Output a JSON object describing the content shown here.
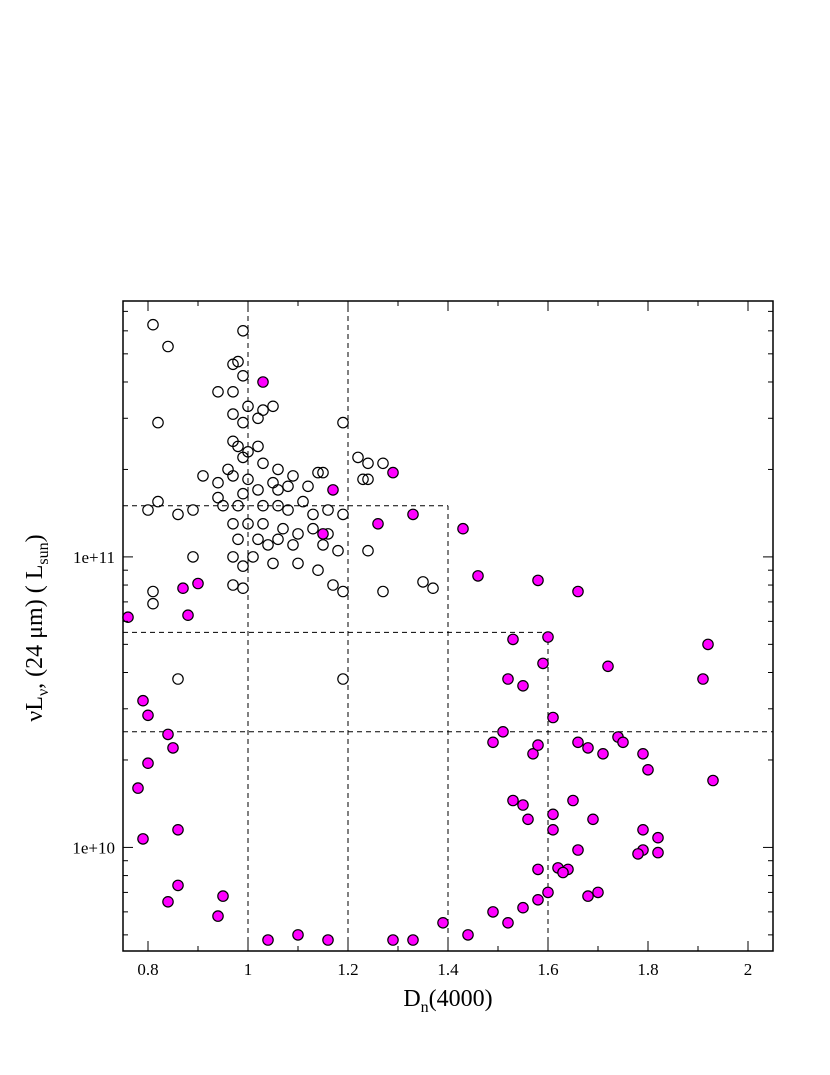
{
  "chart_data": {
    "type": "scatter",
    "title": "",
    "xlabel": {
      "main": "D",
      "sub": "n",
      "rest": "(4000)"
    },
    "ylabel": {
      "nu": "ν",
      "L": "L",
      "sub_nu": "ν",
      "mid": ", (24 μm) ( L",
      "sub_sun": "sun",
      "end": ")"
    },
    "xlim": [
      0.75,
      2.05
    ],
    "ylim": [
      4400000000.0,
      760000000000.0
    ],
    "yscale": "log",
    "x_ticks": [
      0.8,
      1,
      1.2,
      1.4,
      1.6,
      1.8,
      2
    ],
    "x_tick_labels": [
      "0.8",
      "1",
      "1.2",
      "1.4",
      "1.6",
      "1.8",
      "2"
    ],
    "y_ticks": [
      10000000000,
      100000000000
    ],
    "y_tick_labels": [
      "1e+10",
      "1e+11"
    ],
    "colors": {
      "filled": "#ff00ff",
      "edge": "#000000",
      "guide": "#000000"
    },
    "guide_lines": [
      {
        "type": "vertical",
        "x": 1.0,
        "y_from": 4400000000.0,
        "y_to": 760000000000.0
      },
      {
        "type": "vertical",
        "x": 1.2,
        "y_from": 4400000000.0,
        "y_to": 760000000000.0
      },
      {
        "type": "horizontal",
        "y": 150000000000.0,
        "x_from": 0.75,
        "x_to": 1.4
      },
      {
        "type": "vertical",
        "x": 1.4,
        "y_from": 4400000000.0,
        "y_to": 150000000000.0
      },
      {
        "type": "horizontal",
        "y": 55000000000.0,
        "x_from": 0.75,
        "x_to": 1.6
      },
      {
        "type": "vertical",
        "x": 1.6,
        "y_from": 4400000000.0,
        "y_to": 55000000000.0
      },
      {
        "type": "horizontal",
        "y": 25000000000.0,
        "x_from": 0.75,
        "x_to": 2.05
      }
    ],
    "series": [
      {
        "marker": "open-circle",
        "points": [
          [
            0.81,
            630000000000.0
          ],
          [
            0.84,
            530000000000.0
          ],
          [
            0.99,
            600000000000.0
          ],
          [
            0.97,
            460000000000.0
          ],
          [
            0.98,
            470000000000.0
          ],
          [
            0.99,
            420000000000.0
          ],
          [
            0.94,
            370000000000.0
          ],
          [
            0.97,
            370000000000.0
          ],
          [
            1.0,
            330000000000.0
          ],
          [
            1.03,
            320000000000.0
          ],
          [
            1.05,
            330000000000.0
          ],
          [
            0.82,
            290000000000.0
          ],
          [
            0.97,
            310000000000.0
          ],
          [
            0.99,
            290000000000.0
          ],
          [
            1.02,
            300000000000.0
          ],
          [
            1.19,
            290000000000.0
          ],
          [
            0.97,
            250000000000.0
          ],
          [
            0.98,
            240000000000.0
          ],
          [
            1.0,
            230000000000.0
          ],
          [
            1.02,
            240000000000.0
          ],
          [
            0.99,
            220000000000.0
          ],
          [
            1.03,
            210000000000.0
          ],
          [
            0.96,
            200000000000.0
          ],
          [
            0.94,
            180000000000.0
          ],
          [
            1.22,
            220000000000.0
          ],
          [
            1.24,
            210000000000.0
          ],
          [
            1.27,
            210000000000.0
          ],
          [
            0.91,
            190000000000.0
          ],
          [
            0.97,
            190000000000.0
          ],
          [
            1.0,
            185000000000.0
          ],
          [
            1.06,
            200000000000.0
          ],
          [
            1.09,
            190000000000.0
          ],
          [
            1.14,
            195000000000.0
          ],
          [
            1.15,
            195000000000.0
          ],
          [
            0.94,
            160000000000.0
          ],
          [
            0.99,
            165000000000.0
          ],
          [
            1.02,
            170000000000.0
          ],
          [
            1.05,
            180000000000.0
          ],
          [
            1.06,
            170000000000.0
          ],
          [
            1.08,
            175000000000.0
          ],
          [
            1.12,
            175000000000.0
          ],
          [
            1.23,
            185000000000.0
          ],
          [
            1.24,
            185000000000.0
          ],
          [
            0.82,
            155000000000.0
          ],
          [
            0.8,
            145000000000.0
          ],
          [
            0.86,
            140000000000.0
          ],
          [
            0.89,
            145000000000.0
          ],
          [
            0.95,
            150000000000.0
          ],
          [
            0.98,
            150000000000.0
          ],
          [
            1.03,
            150000000000.0
          ],
          [
            1.06,
            150000000000.0
          ],
          [
            1.08,
            145000000000.0
          ],
          [
            1.11,
            155000000000.0
          ],
          [
            1.13,
            140000000000.0
          ],
          [
            1.16,
            145000000000.0
          ],
          [
            1.19,
            140000000000.0
          ],
          [
            0.97,
            130000000000.0
          ],
          [
            1.0,
            130000000000.0
          ],
          [
            1.03,
            130000000000.0
          ],
          [
            1.07,
            125000000000.0
          ],
          [
            1.1,
            120000000000.0
          ],
          [
            1.13,
            125000000000.0
          ],
          [
            1.16,
            120000000000.0
          ],
          [
            0.98,
            115000000000.0
          ],
          [
            1.02,
            115000000000.0
          ],
          [
            1.04,
            110000000000.0
          ],
          [
            1.06,
            115000000000.0
          ],
          [
            1.09,
            110000000000.0
          ],
          [
            1.15,
            110000000000.0
          ],
          [
            1.18,
            105000000000.0
          ],
          [
            0.89,
            100000000000.0
          ],
          [
            0.97,
            100000000000.0
          ],
          [
            1.01,
            100000000000.0
          ],
          [
            1.05,
            95000000000.0
          ],
          [
            1.1,
            95000000000.0
          ],
          [
            1.14,
            90000000000.0
          ],
          [
            0.99,
            93000000000.0
          ],
          [
            1.24,
            105000000000.0
          ],
          [
            0.81,
            76000000000.0
          ],
          [
            0.81,
            69000000000.0
          ],
          [
            0.97,
            80000000000.0
          ],
          [
            0.99,
            78000000000.0
          ],
          [
            1.17,
            80000000000.0
          ],
          [
            1.19,
            76000000000.0
          ],
          [
            1.27,
            76000000000.0
          ],
          [
            1.35,
            82000000000.0
          ],
          [
            1.37,
            78000000000.0
          ],
          [
            0.86,
            38000000000.0
          ],
          [
            1.19,
            38000000000.0
          ]
        ]
      },
      {
        "marker": "filled-circle",
        "points": [
          [
            0.76,
            62000000000.0
          ],
          [
            0.78,
            16000000000.0
          ],
          [
            0.79,
            32000000000.0
          ],
          [
            0.79,
            10700000000.0
          ],
          [
            0.8,
            19500000000.0
          ],
          [
            0.8,
            28500000000.0
          ],
          [
            0.84,
            6500000000.0
          ],
          [
            0.84,
            24500000000.0
          ],
          [
            0.85,
            22000000000.0
          ],
          [
            0.86,
            7400000000.0
          ],
          [
            0.86,
            11500000000.0
          ],
          [
            0.87,
            78000000000.0
          ],
          [
            0.88,
            63000000000.0
          ],
          [
            0.9,
            81000000000.0
          ],
          [
            0.94,
            5800000000.0
          ],
          [
            0.95,
            6800000000.0
          ],
          [
            1.04,
            4800000000.0
          ],
          [
            1.1,
            5000000000.0
          ],
          [
            1.16,
            4800000000.0
          ],
          [
            1.29,
            4800000000.0
          ],
          [
            1.33,
            4800000000.0
          ],
          [
            1.44,
            5000000000.0
          ],
          [
            1.39,
            5500000000.0
          ],
          [
            1.49,
            6000000000.0
          ],
          [
            1.52,
            5500000000.0
          ],
          [
            1.55,
            6200000000.0
          ],
          [
            1.03,
            400000000000.0
          ],
          [
            1.17,
            170000000000.0
          ],
          [
            1.29,
            195000000000.0
          ],
          [
            1.15,
            120000000000.0
          ],
          [
            1.26,
            130000000000.0
          ],
          [
            1.33,
            140000000000.0
          ],
          [
            1.43,
            125000000000.0
          ],
          [
            1.46,
            86000000000.0
          ],
          [
            1.58,
            83000000000.0
          ],
          [
            1.66,
            76000000000.0
          ],
          [
            1.53,
            52000000000.0
          ],
          [
            1.6,
            53000000000.0
          ],
          [
            1.59,
            43000000000.0
          ],
          [
            1.72,
            42000000000.0
          ],
          [
            1.92,
            50000000000.0
          ],
          [
            1.91,
            38000000000.0
          ],
          [
            1.52,
            38000000000.0
          ],
          [
            1.55,
            36000000000.0
          ],
          [
            1.61,
            28000000000.0
          ],
          [
            1.66,
            23000000000.0
          ],
          [
            1.68,
            22000000000.0
          ],
          [
            1.71,
            21000000000.0
          ],
          [
            1.74,
            24000000000.0
          ],
          [
            1.75,
            23000000000.0
          ],
          [
            1.79,
            21000000000.0
          ],
          [
            1.8,
            18500000000.0
          ],
          [
            1.93,
            17000000000.0
          ],
          [
            1.65,
            14500000000.0
          ],
          [
            1.61,
            13000000000.0
          ],
          [
            1.69,
            12500000000.0
          ],
          [
            1.79,
            11500000000.0
          ],
          [
            1.82,
            10800000000.0
          ],
          [
            1.79,
            9800000000.0
          ],
          [
            1.78,
            9500000000.0
          ],
          [
            1.82,
            9600000000.0
          ],
          [
            1.66,
            9800000000.0
          ],
          [
            1.62,
            8500000000.0
          ],
          [
            1.64,
            8400000000.0
          ],
          [
            1.63,
            8200000000.0
          ],
          [
            1.7,
            7000000000.0
          ],
          [
            1.68,
            6800000000.0
          ],
          [
            1.58,
            8400000000.0
          ],
          [
            1.58,
            6600000000.0
          ],
          [
            1.6,
            7000000000.0
          ],
          [
            1.61,
            11500000000.0
          ],
          [
            1.56,
            12500000000.0
          ],
          [
            1.53,
            14500000000.0
          ],
          [
            1.55,
            14000000000.0
          ],
          [
            1.57,
            21000000000.0
          ],
          [
            1.58,
            22500000000.0
          ],
          [
            1.51,
            25000000000.0
          ],
          [
            1.49,
            23000000000.0
          ]
        ]
      }
    ]
  }
}
